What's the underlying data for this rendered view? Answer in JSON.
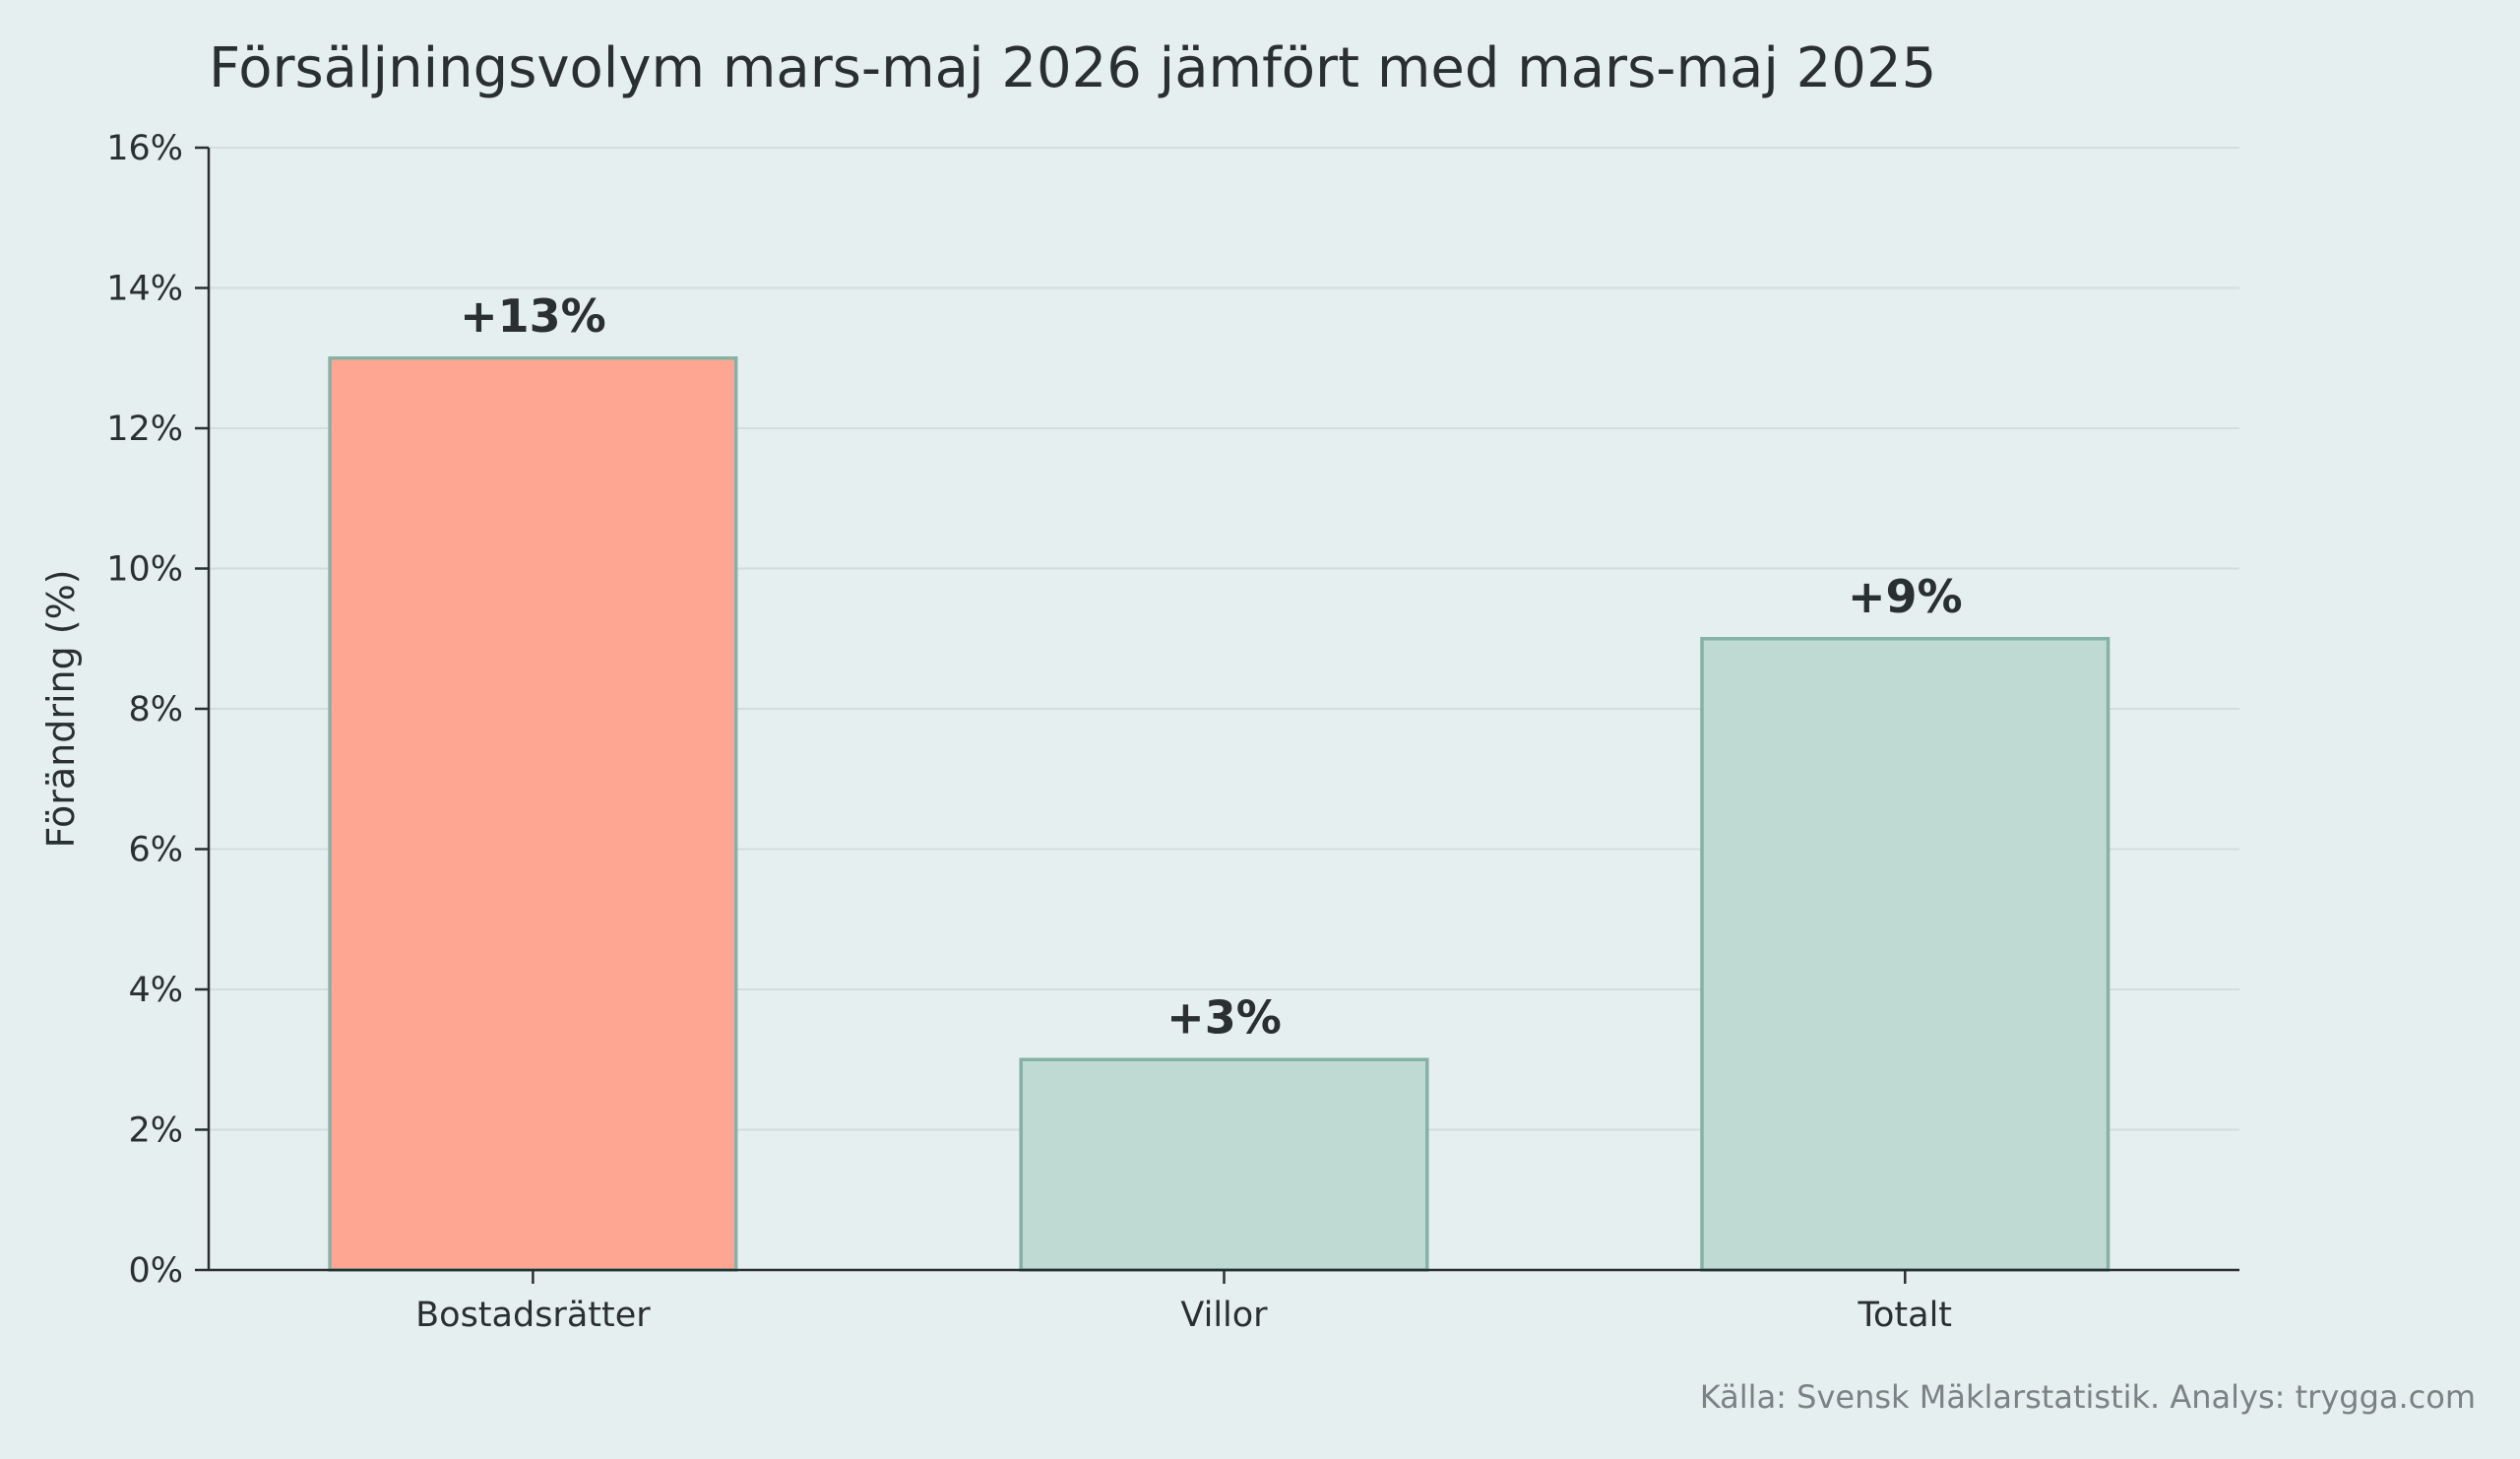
{
  "chart_data": {
    "type": "bar",
    "title": "Försäljningsvolym mars-maj 2026 jämfört med mars-maj 2025",
    "ylabel": "Förändring (%)",
    "xlabel": "",
    "categories": [
      "Bostadsrätter",
      "Villor",
      "Totalt"
    ],
    "values": [
      13,
      3,
      9
    ],
    "value_labels": [
      "+13%",
      "+3%",
      "+9%"
    ],
    "bar_colors": [
      "#ffa692",
      "#bfdad2",
      "#bfdad2"
    ],
    "bar_edge_color": "#86b1a5",
    "ylim": [
      0,
      16
    ],
    "yticks": [
      0,
      2,
      4,
      6,
      8,
      10,
      12,
      14,
      16
    ],
    "ytick_labels": [
      "0%",
      "2%",
      "4%",
      "6%",
      "8%",
      "10%",
      "12%",
      "14%",
      "16%"
    ],
    "grid": "horizontal",
    "source": "Källa: Svensk Mäklarstatistik. Analys: trygga.com",
    "colors": {
      "background": "#e6efef",
      "grid": "#d3dddd",
      "axis": "#2a2f31",
      "text": "#2a2f31",
      "source_text": "#7a8285"
    }
  }
}
